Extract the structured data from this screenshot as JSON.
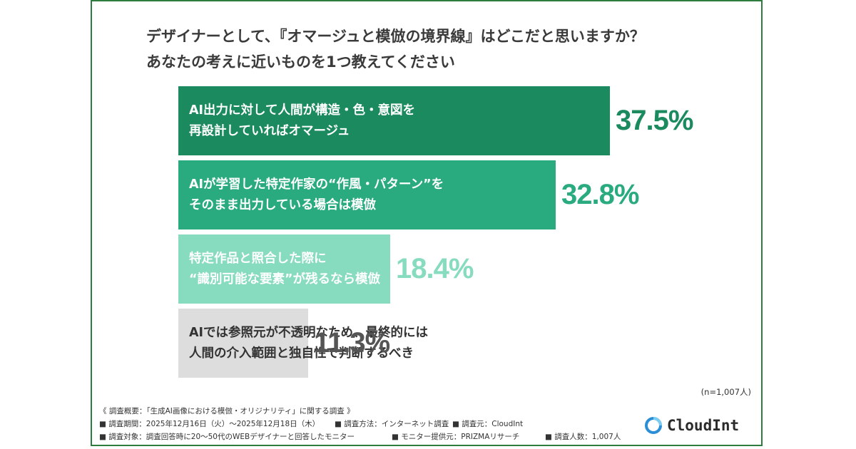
{
  "title": {
    "line1": "デザイナーとして、『オマージュと模倣の境界線』はどこだと思いますか？",
    "line2": "あなたの考えに近いものを1つ教えてください"
  },
  "chart_data": {
    "type": "bar",
    "orientation": "horizontal",
    "unit": "%",
    "categories": [
      [
        "AI出力に対して人間が構造・色・意図を",
        "再設計していればオマージュ"
      ],
      [
        "AIが学習した特定作家の“作風・パターン”を",
        "そのまま出力している場合は模倣"
      ],
      [
        "特定作品と照合した際に",
        "“識別可能な要素”が残るなら模倣"
      ],
      [
        "AIでは参照元が不透明なため、最終的には",
        "人間の介入範囲と独自性で判断するべき"
      ]
    ],
    "values": [
      37.5,
      32.8,
      18.4,
      11.3
    ],
    "value_labels": [
      "37.5%",
      "32.8%",
      "18.4%",
      "11.3%"
    ],
    "bar_colors": [
      "#1b8a5e",
      "#29ab7f",
      "#87dbbe",
      "#dddddd"
    ],
    "label_colors": [
      "#ffffff",
      "#ffffff",
      "#ffffff",
      "#333333"
    ],
    "value_colors": [
      "#1b8a5e",
      "#29ab7f",
      "#87dbbe",
      "#555555"
    ],
    "xlim": [
      0,
      37.5
    ]
  },
  "sample_note": "(n=1,007人)",
  "footnotes": {
    "overview": "《 調査概要：「生成AI画像における模倣・オリジナリティ」に関する調査 》",
    "period": "■ 調査期間：2025年12月16日（火）〜2025年12月18日（木）",
    "method": "■ 調査方法：インターネット調査",
    "source": "■ 調査元：CloudInt",
    "target": "■ 調査対象：調査回答時に20〜50代のWEBデザイナーと回答したモニター",
    "provider": "■ モニター提供元：PRIZMAリサーチ",
    "count": "■ 調査人数：1,007人"
  },
  "logo": {
    "text": "CloudInt",
    "icon": "cloudint-logo-icon",
    "color": "#2c8fd6"
  }
}
